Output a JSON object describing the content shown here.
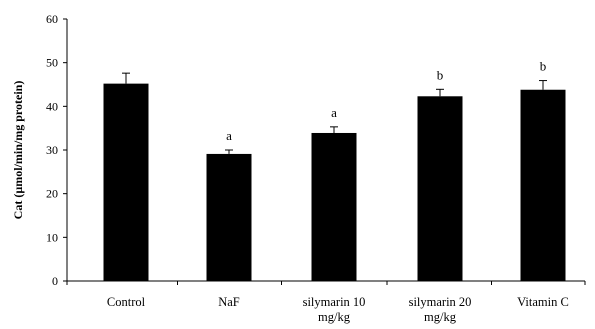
{
  "chart_data": {
    "type": "bar",
    "categories": [
      [
        "Control"
      ],
      [
        "NaF"
      ],
      [
        "silymarin 10",
        "mg/kg"
      ],
      [
        "silymarin 20",
        "mg/kg"
      ],
      [
        "Vitamin C"
      ]
    ],
    "values": [
      45.2,
      29.1,
      33.9,
      42.3,
      43.8
    ],
    "errors": [
      2.4,
      0.9,
      1.4,
      1.6,
      2.1
    ],
    "significance": [
      "",
      "a",
      "a",
      "b",
      "b"
    ],
    "title": "",
    "xlabel": "",
    "ylabel": "Cat (µmol/min/mg protein)",
    "ylim": [
      0,
      60
    ],
    "yticks": [
      0,
      10,
      20,
      30,
      40,
      50,
      60
    ],
    "grid": false,
    "legend": "none",
    "bar_color": "#000000"
  }
}
